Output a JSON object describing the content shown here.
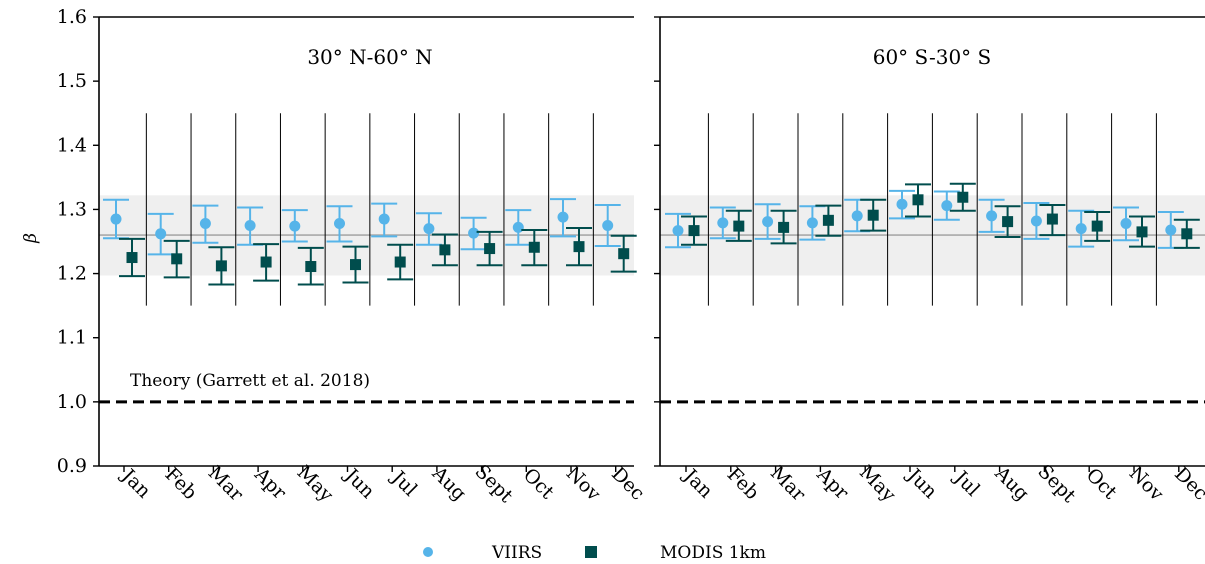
{
  "chart_data": {
    "type": "scatter",
    "ylabel": "β",
    "ylim": [
      0.9,
      1.6
    ],
    "yticks": [
      "0.9",
      "1.0",
      "1.1",
      "1.2",
      "1.3",
      "1.4",
      "1.5",
      "1.6"
    ],
    "categories": [
      "Jan",
      "Feb",
      "Mar",
      "Apr",
      "May",
      "Jun",
      "Jul",
      "Aug",
      "Sept",
      "Oct",
      "Nov",
      "Dec"
    ],
    "theory_line": {
      "y": 1.0,
      "label": "Theory (Garrett et al. 2018)"
    },
    "mean_line": {
      "y": 1.26
    },
    "shaded_band": [
      1.197,
      1.322
    ],
    "colors": {
      "VIIRS": "#56b4e9",
      "MODIS 1km": "#004d4d",
      "band": "#efefef",
      "mean": "#aaaaaa"
    },
    "legend": {
      "position": "bottom-center",
      "entries": [
        "VIIRS",
        "MODIS 1km"
      ]
    },
    "panels": [
      {
        "title": "30° N-60° N",
        "series": [
          {
            "name": "VIIRS",
            "values": [
              1.285,
              1.262,
              1.278,
              1.275,
              1.274,
              1.278,
              1.285,
              1.27,
              1.263,
              1.272,
              1.288,
              1.275
            ],
            "err_low": [
              1.255,
              1.23,
              1.248,
              1.245,
              1.25,
              1.25,
              1.258,
              1.245,
              1.238,
              1.245,
              1.258,
              1.243
            ],
            "err_high": [
              1.315,
              1.293,
              1.306,
              1.303,
              1.299,
              1.305,
              1.309,
              1.294,
              1.287,
              1.299,
              1.316,
              1.307
            ]
          },
          {
            "name": "MODIS 1km",
            "values": [
              1.225,
              1.223,
              1.212,
              1.218,
              1.211,
              1.214,
              1.218,
              1.237,
              1.239,
              1.241,
              1.242,
              1.231
            ],
            "err_low": [
              1.196,
              1.194,
              1.183,
              1.189,
              1.183,
              1.186,
              1.191,
              1.213,
              1.213,
              1.213,
              1.213,
              1.203
            ],
            "err_high": [
              1.254,
              1.251,
              1.241,
              1.246,
              1.24,
              1.242,
              1.245,
              1.261,
              1.265,
              1.268,
              1.271,
              1.259
            ]
          }
        ]
      },
      {
        "title": "60° S-30° S",
        "series": [
          {
            "name": "VIIRS",
            "values": [
              1.267,
              1.279,
              1.281,
              1.279,
              1.29,
              1.308,
              1.306,
              1.29,
              1.282,
              1.27,
              1.278,
              1.268
            ],
            "err_low": [
              1.241,
              1.255,
              1.254,
              1.253,
              1.266,
              1.286,
              1.284,
              1.265,
              1.254,
              1.242,
              1.252,
              1.24
            ],
            "err_high": [
              1.293,
              1.303,
              1.308,
              1.305,
              1.315,
              1.329,
              1.328,
              1.315,
              1.31,
              1.298,
              1.303,
              1.296
            ]
          },
          {
            "name": "MODIS 1km",
            "values": [
              1.267,
              1.274,
              1.272,
              1.283,
              1.291,
              1.315,
              1.319,
              1.281,
              1.285,
              1.274,
              1.265,
              1.262
            ],
            "err_low": [
              1.245,
              1.251,
              1.247,
              1.259,
              1.267,
              1.289,
              1.298,
              1.257,
              1.26,
              1.251,
              1.242,
              1.24
            ],
            "err_high": [
              1.289,
              1.298,
              1.298,
              1.306,
              1.315,
              1.339,
              1.34,
              1.305,
              1.307,
              1.296,
              1.289,
              1.284
            ]
          }
        ]
      }
    ]
  }
}
